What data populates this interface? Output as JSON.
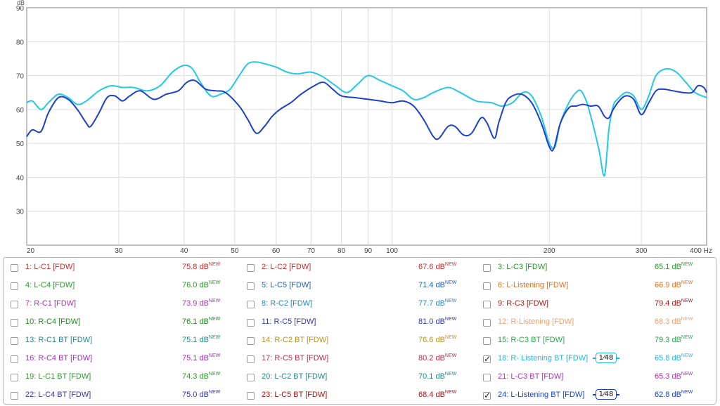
{
  "chart_data": {
    "type": "line",
    "title": "",
    "ylabel": "dB",
    "xlabel": "",
    "x_unit": "Hz",
    "x_scale": "log",
    "xlim": [
      20,
      400
    ],
    "ylim": [
      20,
      90
    ],
    "grid": true,
    "y_ticks": [
      30,
      40,
      50,
      60,
      70,
      80,
      90
    ],
    "x_ticks": [
      {
        "v": 20,
        "label": "20"
      },
      {
        "v": 30,
        "label": "30"
      },
      {
        "v": 40,
        "label": "40"
      },
      {
        "v": 50,
        "label": "50"
      },
      {
        "v": 60,
        "label": "60"
      },
      {
        "v": 70,
        "label": "70"
      },
      {
        "v": 80,
        "label": "80"
      },
      {
        "v": 90,
        "label": "90"
      },
      {
        "v": 100,
        "label": "100"
      },
      {
        "v": 200,
        "label": "200"
      },
      {
        "v": 300,
        "label": "300"
      },
      {
        "v": 400,
        "label": "400 Hz"
      }
    ],
    "series": [
      {
        "name": "18: R- Listening BT [FDW]",
        "color": "#22c8e8",
        "points": [
          [
            20,
            62
          ],
          [
            20.5,
            62.5
          ],
          [
            21.3,
            60
          ],
          [
            22,
            62
          ],
          [
            23,
            64.5
          ],
          [
            24,
            63.5
          ],
          [
            25,
            61.5
          ],
          [
            26,
            62.5
          ],
          [
            27.5,
            65.5
          ],
          [
            29,
            67
          ],
          [
            30.5,
            66.5
          ],
          [
            32,
            66.5
          ],
          [
            34,
            65.5
          ],
          [
            36,
            67
          ],
          [
            38,
            71
          ],
          [
            40,
            73
          ],
          [
            41.5,
            72
          ],
          [
            43,
            68
          ],
          [
            45,
            64
          ],
          [
            47,
            64.5
          ],
          [
            49,
            66
          ],
          [
            51,
            70
          ],
          [
            53,
            73.5
          ],
          [
            55,
            74
          ],
          [
            57,
            73.5
          ],
          [
            60,
            72.5
          ],
          [
            63,
            71
          ],
          [
            66,
            70.5
          ],
          [
            70,
            71
          ],
          [
            74,
            69.5
          ],
          [
            78,
            67
          ],
          [
            82,
            65
          ],
          [
            86,
            67.5
          ],
          [
            90,
            70
          ],
          [
            95,
            68.5
          ],
          [
            100,
            67
          ],
          [
            105,
            65.5
          ],
          [
            110,
            63
          ],
          [
            115,
            63.5
          ],
          [
            120,
            65
          ],
          [
            128,
            66.5
          ],
          [
            135,
            65
          ],
          [
            145,
            62.5
          ],
          [
            155,
            62
          ],
          [
            162,
            61
          ],
          [
            170,
            62
          ],
          [
            178,
            65
          ],
          [
            185,
            64
          ],
          [
            193,
            58
          ],
          [
            200,
            50
          ],
          [
            205,
            49
          ],
          [
            210,
            56
          ],
          [
            218,
            62
          ],
          [
            225,
            65
          ],
          [
            230,
            65.5
          ],
          [
            236,
            62
          ],
          [
            242,
            56
          ],
          [
            249,
            48
          ],
          [
            255,
            40.5
          ],
          [
            260,
            54
          ],
          [
            265,
            61
          ],
          [
            270,
            63
          ],
          [
            280,
            65
          ],
          [
            290,
            64
          ],
          [
            300,
            60
          ],
          [
            310,
            64
          ],
          [
            320,
            70
          ],
          [
            335,
            72
          ],
          [
            350,
            71
          ],
          [
            365,
            68
          ],
          [
            380,
            65
          ],
          [
            400,
            63.5
          ]
        ]
      },
      {
        "name": "24: L-Listening BT [FDW]",
        "color": "#1a3fd1",
        "points": [
          [
            20,
            52
          ],
          [
            20.5,
            54
          ],
          [
            21.3,
            53.5
          ],
          [
            22,
            59
          ],
          [
            23,
            63.5
          ],
          [
            24,
            63
          ],
          [
            25,
            60
          ],
          [
            26,
            56
          ],
          [
            26.5,
            55
          ],
          [
            27.5,
            59
          ],
          [
            28.5,
            63.5
          ],
          [
            29.5,
            64
          ],
          [
            30.5,
            62.5
          ],
          [
            31.5,
            64
          ],
          [
            33,
            65.5
          ],
          [
            35,
            63
          ],
          [
            37,
            64.5
          ],
          [
            39,
            65.5
          ],
          [
            40.5,
            68
          ],
          [
            42,
            68.5
          ],
          [
            44,
            66
          ],
          [
            46,
            65.5
          ],
          [
            48,
            65
          ],
          [
            51,
            61
          ],
          [
            53,
            57
          ],
          [
            55,
            53
          ],
          [
            57,
            55
          ],
          [
            59,
            58
          ],
          [
            61,
            60
          ],
          [
            64,
            62
          ],
          [
            67,
            64.5
          ],
          [
            71,
            67
          ],
          [
            74,
            68
          ],
          [
            77,
            66
          ],
          [
            80,
            64
          ],
          [
            85,
            63.5
          ],
          [
            90,
            63
          ],
          [
            95,
            62.5
          ],
          [
            100,
            62
          ],
          [
            105,
            62.5
          ],
          [
            110,
            61
          ],
          [
            115,
            57
          ],
          [
            120,
            52
          ],
          [
            123,
            51.5
          ],
          [
            128,
            55
          ],
          [
            132,
            55
          ],
          [
            137,
            52.5
          ],
          [
            142,
            53
          ],
          [
            148,
            57.5
          ],
          [
            152,
            56
          ],
          [
            157,
            51.5
          ],
          [
            160,
            56
          ],
          [
            165,
            62
          ],
          [
            170,
            64
          ],
          [
            177,
            64.5
          ],
          [
            185,
            62
          ],
          [
            193,
            56
          ],
          [
            200,
            49
          ],
          [
            204,
            48.5
          ],
          [
            210,
            56
          ],
          [
            218,
            60.5
          ],
          [
            225,
            61
          ],
          [
            232,
            61.5
          ],
          [
            240,
            61
          ],
          [
            248,
            61
          ],
          [
            255,
            58
          ],
          [
            260,
            57.5
          ],
          [
            265,
            60
          ],
          [
            272,
            62.5
          ],
          [
            280,
            64
          ],
          [
            290,
            63
          ],
          [
            300,
            58.5
          ],
          [
            310,
            62
          ],
          [
            320,
            65.5
          ],
          [
            330,
            66
          ],
          [
            345,
            65.5
          ],
          [
            360,
            65
          ],
          [
            375,
            65
          ],
          [
            385,
            67
          ],
          [
            395,
            66.5
          ],
          [
            400,
            65
          ]
        ]
      }
    ]
  },
  "legend": {
    "items": [
      {
        "label": "1: L-C1 [FDW]",
        "value": "75.8 dB",
        "color": "#d62b2b",
        "checked": false
      },
      {
        "label": "2: L-C2 [FDW]",
        "value": "67.6 dB",
        "color": "#d62b2b",
        "checked": false
      },
      {
        "label": "3: L-C3 [FDW]",
        "value": "65.1 dB",
        "color": "#2a9a2a",
        "checked": false
      },
      {
        "label": "4: L-C4 [FDW]",
        "value": "76.0 dB",
        "color": "#2a9a2a",
        "checked": false
      },
      {
        "label": "5: L-C5 [FDW]",
        "value": "71.4 dB",
        "color": "#1f5fc0",
        "checked": false
      },
      {
        "label": "6: L-Listening [FDW]",
        "value": "66.9 dB",
        "color": "#e8701f",
        "checked": false
      },
      {
        "label": "7: R-C1 [FDW]",
        "value": "73.9 dB",
        "color": "#a83aa8",
        "checked": false
      },
      {
        "label": "8: R-C2 [FDW]",
        "value": "77.7 dB",
        "color": "#2a86c0",
        "checked": false
      },
      {
        "label": "9: R-C3 [FDW]",
        "value": "79.4 dB",
        "color": "#b01515",
        "checked": false
      },
      {
        "label": "10: R-C4 [FDW]",
        "value": "76.1 dB",
        "color": "#1f8a1f",
        "checked": false
      },
      {
        "label": "11: R-C5 [FDW]",
        "value": "81.0 dB",
        "color": "#3535b0",
        "checked": false
      },
      {
        "label": "12: R-Listening [FDW]",
        "value": "68.3 dB",
        "color": "#f0a070",
        "checked": false
      },
      {
        "label": "13: R-C1 BT [FDW]",
        "value": "75.1 dB",
        "color": "#238a8a",
        "checked": false
      },
      {
        "label": "14: R-C2 BT [FDW]",
        "value": "76.6 dB",
        "color": "#b8921f",
        "checked": false
      },
      {
        "label": "15: R-C3 BT [FDW]",
        "value": "79.3 dB",
        "color": "#2aa84a",
        "checked": false
      },
      {
        "label": "16: R-C4 BT [FDW]",
        "value": "75.1 dB",
        "color": "#a030b8",
        "checked": false
      },
      {
        "label": "17: R-C5 BT [FDW]",
        "value": "80.2 dB",
        "color": "#c02a4a",
        "checked": false
      },
      {
        "label": "18: R- Listening BT [FDW]",
        "value": "65.8 dB",
        "color": "#22b8e0",
        "checked": true,
        "smoothing": {
          "num": "1",
          "den": "48"
        }
      },
      {
        "label": "19: L-C1 BT [FDW]",
        "value": "74.3 dB",
        "color": "#2a9a2a",
        "checked": false
      },
      {
        "label": "20: L-C2 BT [FDW]",
        "value": "70.1 dB",
        "color": "#238a8a",
        "checked": false
      },
      {
        "label": "21: L-C3 BT [FDW]",
        "value": "65.3 dB",
        "color": "#b030b0",
        "checked": false
      },
      {
        "label": "22: L-C4 BT [FDW]",
        "value": "75.0 dB",
        "color": "#3535b0",
        "checked": false
      },
      {
        "label": "23: L-C5 BT [FDW]",
        "value": "68.4 dB",
        "color": "#b01515",
        "checked": false
      },
      {
        "label": "24: L-Listening BT [FDW]",
        "value": "62.8 dB",
        "color": "#1a3fd1",
        "checked": true,
        "smoothing": {
          "num": "1",
          "den": "48"
        }
      }
    ],
    "new_badge": "NEW"
  }
}
